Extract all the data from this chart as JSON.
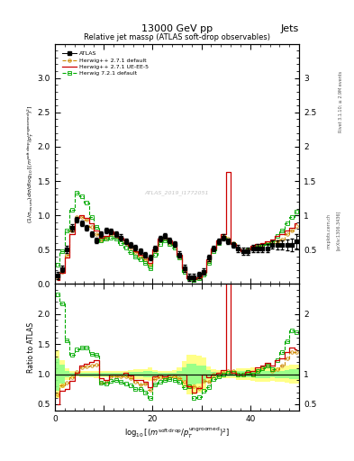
{
  "title": "13000 GeV pp",
  "title_right": "Jets",
  "plot_title": "Relative jet massρ (ATLAS soft-drop observables)",
  "ylabel_main": "(1/σ_resum) dσ/d log₁₀[(m^{soft drop}/p_T^{ungroomed})^2]",
  "ylabel_ratio": "Ratio to ATLAS",
  "xlabel": "log₁₀[(m^{soft drop}/p_T^{ungroomed})^2]",
  "watermark": "ATLAS_2019_I1772051",
  "rivet_text": "Rivet 3.1.10; ≥ 2.9M events",
  "arxiv_text": "[arXiv:1306.3436]",
  "mcplots_text": "mcplots.cern.ch",
  "xlim": [
    0,
    50
  ],
  "ylim_main": [
    0,
    3.5
  ],
  "ylim_ratio": [
    0.4,
    2.5
  ],
  "legend_entries": [
    "ATLAS",
    "Herwig++ 2.7.1 default",
    "Herwig++ 2.7.1 UE-EE-5",
    "Herwig 7.2.1 default"
  ],
  "color_hw271": "#cc8800",
  "color_hw271ue": "#cc0000",
  "color_hw721": "#00aa00",
  "color_atlas": "#000000",
  "color_band_yellow": "#ffff88",
  "color_band_green": "#88ff88",
  "n_bins": 50,
  "bin_width": 1.0,
  "atlas_x": [
    0.5,
    1.5,
    2.5,
    3.5,
    4.5,
    5.5,
    6.5,
    7.5,
    8.5,
    9.5,
    10.5,
    11.5,
    12.5,
    13.5,
    14.5,
    15.5,
    16.5,
    17.5,
    18.5,
    19.5,
    20.5,
    21.5,
    22.5,
    23.5,
    24.5,
    25.5,
    26.5,
    27.5,
    28.5,
    29.5,
    30.5,
    31.5,
    32.5,
    33.5,
    34.5,
    35.5,
    36.5,
    37.5,
    38.5,
    39.5,
    40.5,
    41.5,
    42.5,
    43.5,
    44.5,
    45.5,
    46.5,
    47.5,
    48.5,
    49.5
  ],
  "atlas_y": [
    0.12,
    0.22,
    0.5,
    0.82,
    0.94,
    0.88,
    0.82,
    0.73,
    0.63,
    0.73,
    0.78,
    0.76,
    0.73,
    0.68,
    0.62,
    0.57,
    0.53,
    0.48,
    0.43,
    0.38,
    0.52,
    0.66,
    0.7,
    0.63,
    0.58,
    0.43,
    0.23,
    0.1,
    0.1,
    0.13,
    0.18,
    0.38,
    0.52,
    0.62,
    0.68,
    0.62,
    0.57,
    0.52,
    0.48,
    0.48,
    0.52,
    0.52,
    0.52,
    0.52,
    0.57,
    0.57,
    0.57,
    0.57,
    0.57,
    0.62
  ],
  "atlas_yerr": [
    0.05,
    0.05,
    0.05,
    0.05,
    0.04,
    0.04,
    0.04,
    0.04,
    0.04,
    0.04,
    0.04,
    0.04,
    0.04,
    0.04,
    0.04,
    0.04,
    0.04,
    0.04,
    0.04,
    0.04,
    0.04,
    0.04,
    0.04,
    0.04,
    0.04,
    0.05,
    0.05,
    0.05,
    0.05,
    0.05,
    0.05,
    0.05,
    0.04,
    0.04,
    0.04,
    0.04,
    0.04,
    0.05,
    0.05,
    0.05,
    0.05,
    0.06,
    0.06,
    0.06,
    0.06,
    0.07,
    0.07,
    0.08,
    0.09,
    0.1
  ],
  "hw271_y": [
    0.08,
    0.18,
    0.43,
    0.78,
    0.98,
    0.98,
    0.93,
    0.83,
    0.73,
    0.63,
    0.68,
    0.73,
    0.7,
    0.66,
    0.6,
    0.53,
    0.46,
    0.4,
    0.36,
    0.28,
    0.48,
    0.63,
    0.66,
    0.6,
    0.56,
    0.4,
    0.2,
    0.08,
    0.08,
    0.1,
    0.16,
    0.33,
    0.52,
    0.62,
    0.7,
    0.66,
    0.6,
    0.52,
    0.48,
    0.5,
    0.52,
    0.55,
    0.57,
    0.6,
    0.6,
    0.62,
    0.65,
    0.72,
    0.78,
    0.85
  ],
  "hw271ue_y": [
    0.06,
    0.16,
    0.38,
    0.73,
    0.96,
    1.0,
    0.96,
    0.88,
    0.78,
    0.68,
    0.7,
    0.76,
    0.73,
    0.68,
    0.63,
    0.56,
    0.48,
    0.43,
    0.38,
    0.3,
    0.5,
    0.66,
    0.68,
    0.63,
    0.58,
    0.43,
    0.23,
    0.08,
    0.07,
    0.1,
    0.18,
    0.36,
    0.52,
    0.63,
    0.73,
    1.63,
    0.58,
    0.52,
    0.48,
    0.5,
    0.55,
    0.58,
    0.6,
    0.62,
    0.65,
    0.7,
    0.72,
    0.78,
    0.82,
    0.88
  ],
  "hw721_y": [
    0.28,
    0.48,
    0.78,
    1.08,
    1.33,
    1.28,
    1.18,
    0.98,
    0.83,
    0.63,
    0.66,
    0.68,
    0.66,
    0.6,
    0.53,
    0.46,
    0.4,
    0.36,
    0.3,
    0.23,
    0.43,
    0.58,
    0.63,
    0.58,
    0.53,
    0.38,
    0.18,
    0.08,
    0.06,
    0.08,
    0.13,
    0.3,
    0.48,
    0.6,
    0.68,
    0.63,
    0.58,
    0.52,
    0.48,
    0.5,
    0.52,
    0.55,
    0.57,
    0.6,
    0.62,
    0.7,
    0.78,
    0.88,
    0.98,
    1.05
  ],
  "ratio_hw271": [
    0.67,
    0.82,
    0.86,
    0.95,
    1.04,
    1.11,
    1.13,
    1.14,
    1.16,
    0.86,
    0.87,
    0.96,
    0.96,
    0.97,
    0.97,
    0.93,
    0.87,
    0.83,
    0.84,
    0.74,
    0.92,
    0.95,
    0.94,
    0.95,
    0.97,
    0.93,
    0.87,
    0.8,
    0.8,
    0.77,
    0.89,
    0.87,
    1.0,
    1.0,
    1.03,
    1.06,
    1.05,
    1.0,
    1.0,
    1.04,
    1.0,
    1.06,
    1.1,
    1.15,
    1.05,
    1.09,
    1.14,
    1.26,
    1.37,
    1.37
  ],
  "ratio_hw271ue": [
    0.5,
    0.73,
    0.76,
    0.89,
    1.02,
    1.14,
    1.17,
    1.21,
    1.24,
    0.93,
    0.9,
    1.0,
    1.0,
    1.0,
    1.02,
    0.98,
    0.91,
    0.9,
    0.88,
    0.79,
    0.96,
    1.0,
    0.97,
    1.0,
    1.0,
    1.0,
    1.0,
    0.8,
    0.7,
    0.77,
    1.0,
    0.95,
    1.0,
    1.02,
    1.07,
    2.63,
    1.02,
    1.0,
    1.0,
    1.04,
    1.06,
    1.12,
    1.15,
    1.19,
    1.14,
    1.23,
    1.26,
    1.37,
    1.44,
    1.42
  ],
  "ratio_hw721": [
    2.33,
    2.18,
    1.56,
    1.32,
    1.41,
    1.45,
    1.44,
    1.34,
    1.32,
    0.86,
    0.85,
    0.89,
    0.9,
    0.88,
    0.85,
    0.81,
    0.75,
    0.75,
    0.7,
    0.61,
    0.83,
    0.88,
    0.9,
    0.92,
    0.91,
    0.88,
    0.78,
    0.8,
    0.6,
    0.62,
    0.72,
    0.79,
    0.92,
    0.97,
    1.0,
    1.02,
    1.02,
    1.0,
    1.0,
    1.04,
    1.0,
    1.06,
    1.1,
    1.15,
    1.09,
    1.23,
    1.37,
    1.54,
    1.72,
    1.69
  ],
  "ratio_band_yellow_lo": [
    0.6,
    0.77,
    0.9,
    0.94,
    0.96,
    0.95,
    0.95,
    0.95,
    0.94,
    0.95,
    0.95,
    0.95,
    0.95,
    0.95,
    0.95,
    0.93,
    0.92,
    0.92,
    0.91,
    0.89,
    0.93,
    0.94,
    0.94,
    0.94,
    0.93,
    0.89,
    0.78,
    0.67,
    0.67,
    0.69,
    0.72,
    0.87,
    0.92,
    0.93,
    0.94,
    0.94,
    0.93,
    0.9,
    0.9,
    0.9,
    0.89,
    0.88,
    0.88,
    0.88,
    0.89,
    0.88,
    0.88,
    0.86,
    0.84,
    0.84
  ],
  "ratio_band_yellow_hi": [
    1.4,
    1.23,
    1.1,
    1.06,
    1.04,
    1.05,
    1.05,
    1.05,
    1.06,
    1.05,
    1.05,
    1.05,
    1.05,
    1.05,
    1.05,
    1.07,
    1.08,
    1.08,
    1.09,
    1.11,
    1.07,
    1.06,
    1.06,
    1.06,
    1.07,
    1.11,
    1.22,
    1.33,
    1.33,
    1.31,
    1.28,
    1.13,
    1.08,
    1.07,
    1.06,
    1.06,
    1.07,
    1.1,
    1.1,
    1.1,
    1.11,
    1.12,
    1.12,
    1.12,
    1.11,
    1.12,
    1.12,
    1.14,
    1.16,
    1.16
  ],
  "ratio_band_green_lo": [
    0.73,
    0.84,
    0.95,
    0.97,
    0.98,
    0.97,
    0.97,
    0.97,
    0.97,
    0.97,
    0.97,
    0.97,
    0.97,
    0.97,
    0.97,
    0.96,
    0.96,
    0.96,
    0.95,
    0.95,
    0.96,
    0.97,
    0.97,
    0.97,
    0.97,
    0.95,
    0.89,
    0.83,
    0.83,
    0.85,
    0.86,
    0.93,
    0.96,
    0.97,
    0.97,
    0.97,
    0.96,
    0.95,
    0.95,
    0.95,
    0.95,
    0.94,
    0.94,
    0.94,
    0.95,
    0.94,
    0.94,
    0.93,
    0.92,
    0.92
  ],
  "ratio_band_green_hi": [
    1.27,
    1.16,
    1.05,
    1.03,
    1.02,
    1.03,
    1.03,
    1.03,
    1.03,
    1.03,
    1.03,
    1.03,
    1.03,
    1.03,
    1.03,
    1.04,
    1.04,
    1.04,
    1.05,
    1.05,
    1.04,
    1.03,
    1.03,
    1.03,
    1.03,
    1.05,
    1.11,
    1.17,
    1.17,
    1.15,
    1.14,
    1.07,
    1.04,
    1.03,
    1.03,
    1.03,
    1.04,
    1.05,
    1.05,
    1.05,
    1.05,
    1.06,
    1.06,
    1.06,
    1.05,
    1.06,
    1.06,
    1.07,
    1.08,
    1.08
  ]
}
